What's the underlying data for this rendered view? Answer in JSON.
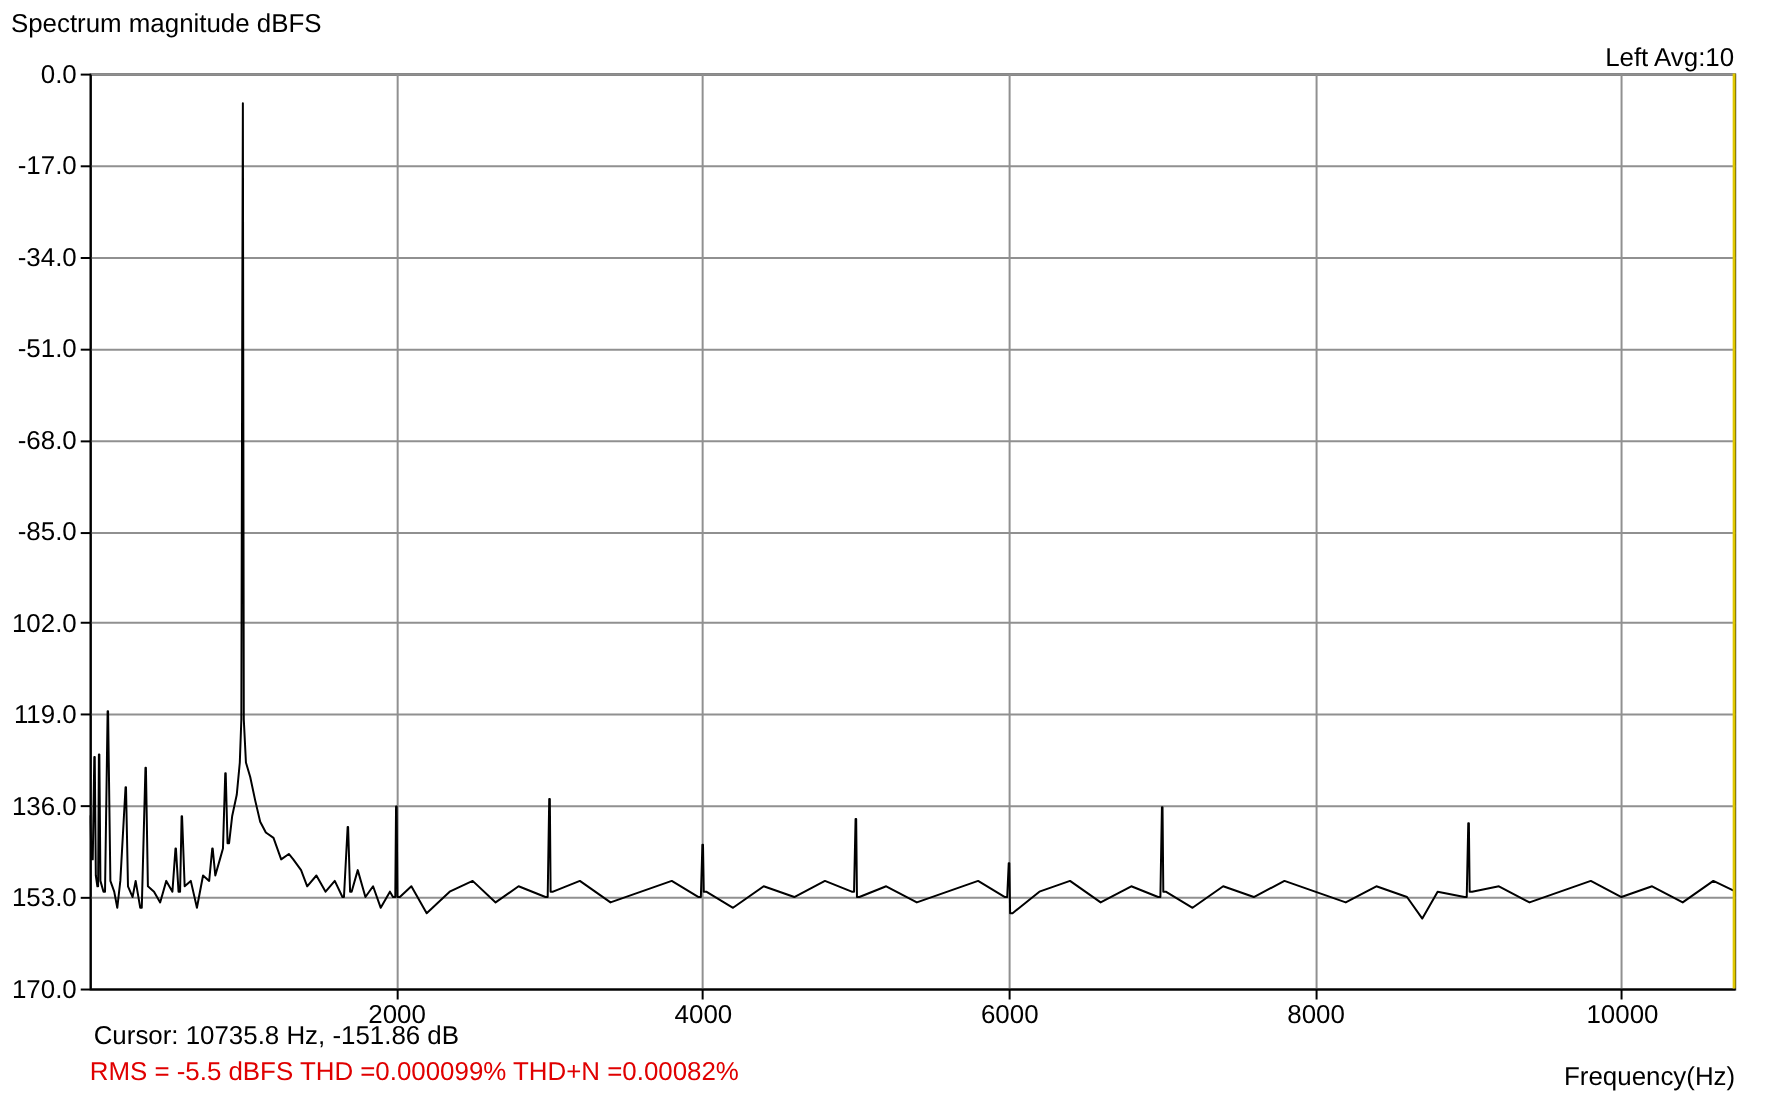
{
  "chart_data": {
    "type": "line",
    "title": "Spectrum magnitude dBFS",
    "xlabel": "Frequency(Hz)",
    "annotations": [
      "Left  Avg:10",
      "Cursor: 10735.8 Hz, -151.86 dB",
      "RMS =   -5.5 dBFS   THD =0.000099%   THD+N =0.00082%"
    ],
    "xlim": [
      0,
      10736
    ],
    "xticks": [
      2000,
      4000,
      6000,
      8000,
      10000
    ],
    "ylim": [
      -170,
      0
    ],
    "yticks": [
      {
        "value": 0,
        "label": "0.0"
      },
      {
        "value": -17,
        "label": "-17.0"
      },
      {
        "value": -34,
        "label": "-34.0"
      },
      {
        "value": -51,
        "label": "-51.0"
      },
      {
        "value": -68,
        "label": "-68.0"
      },
      {
        "value": -85,
        "label": "-85.0"
      },
      {
        "value": -102,
        "label": "102.0"
      },
      {
        "value": -119,
        "label": "119.0"
      },
      {
        "value": -136,
        "label": "136.0"
      },
      {
        "value": -153,
        "label": "153.0"
      },
      {
        "value": -170,
        "label": "170.0"
      }
    ],
    "grid": true,
    "ref_lines": [
      {
        "axis": "x",
        "value": 10735.8,
        "color": "#e0c800"
      }
    ],
    "series": [
      {
        "color": "#000000",
        "x": [
          0,
          15,
          20,
          30,
          33,
          40,
          50,
          55,
          60,
          63,
          70,
          90,
          100,
          117,
          120,
          135,
          160,
          180,
          200,
          234,
          237,
          250,
          280,
          300,
          330,
          340,
          364,
          367,
          380,
          420,
          460,
          500,
          540,
          560,
          563,
          580,
          590,
          600,
          603,
          620,
          660,
          700,
          740,
          780,
          800,
          803,
          820,
          850,
          870,
          885,
          888,
          900,
          910,
          930,
          960,
          980,
          990,
          996,
          1000,
          1006,
          1020,
          1048,
          1080,
          1113,
          1150,
          1200,
          1250,
          1300,
          1329,
          1380,
          1420,
          1480,
          1540,
          1600,
          1650,
          1660,
          1684,
          1687,
          1700,
          1710,
          1750,
          1800,
          1850,
          1900,
          1960,
          1980,
          1995,
          2000,
          2004,
          2009,
          2025,
          2100,
          2200,
          2350,
          2500,
          2650,
          2800,
          2975,
          2990,
          3000,
          3004,
          3009,
          3025,
          3200,
          3400,
          3600,
          3800,
          3975,
          3990,
          4000,
          4004,
          4009,
          4025,
          4200,
          4400,
          4600,
          4800,
          4975,
          4990,
          5000,
          5004,
          5009,
          5025,
          5200,
          5400,
          5600,
          5800,
          5975,
          5990,
          6000,
          6004,
          6009,
          6025,
          6200,
          6400,
          6600,
          6800,
          6975,
          6990,
          7000,
          7004,
          7009,
          7025,
          7200,
          7400,
          7600,
          7800,
          8000,
          8200,
          8400,
          8600,
          8700,
          8800,
          8975,
          8990,
          9000,
          9004,
          9009,
          9025,
          9200,
          9400,
          9600,
          9800,
          10000,
          10200,
          10400,
          10600,
          10736
        ],
        "values": [
          -138,
          -146,
          -146,
          -127,
          -127,
          -149,
          -151,
          -151,
          -126.5,
          -126.5,
          -150,
          -152,
          -152,
          -118.5,
          -118.5,
          -150,
          -152,
          -155,
          -150,
          -132.6,
          -132.6,
          -151,
          -153,
          -150,
          -155,
          -155,
          -129,
          -129,
          -151,
          -152,
          -154,
          -150,
          -152,
          -144,
          -144,
          -152,
          -152,
          -138,
          -138,
          -151,
          -150,
          -155,
          -149,
          -150,
          -144,
          -144,
          -149,
          -146,
          -144,
          -130,
          -130,
          -143,
          -143,
          -138,
          -134,
          -128,
          -120,
          -46,
          -5.5,
          -120,
          -128,
          -130.7,
          -135,
          -139,
          -141,
          -142,
          -146,
          -145,
          -146,
          -148,
          -151,
          -149,
          -152,
          -150,
          -153,
          -153,
          -140,
          -140,
          -152,
          -152,
          -148,
          -153,
          -151,
          -155,
          -152,
          -153,
          -153,
          -136.2,
          -136.2,
          -153,
          -153,
          -151,
          -156,
          -152,
          -150,
          -154,
          -151,
          -153,
          -153,
          -134.8,
          -134.8,
          -152,
          -152,
          -150,
          -154,
          -152,
          -150,
          -153,
          -153,
          -143.3,
          -143.3,
          -152,
          -152,
          -155,
          -151,
          -153,
          -150,
          -152,
          -152,
          -138.5,
          -138.5,
          -153,
          -153,
          -151,
          -154,
          -152,
          -150,
          -153,
          -153,
          -146.7,
          -146.7,
          -156,
          -156,
          -152,
          -150,
          -154,
          -151,
          -153,
          -153,
          -136.3,
          -136.3,
          -152,
          -152,
          -155,
          -151,
          -153,
          -150,
          -152,
          -154,
          -151,
          -153,
          -157,
          -152,
          -153,
          -153,
          -139.3,
          -139.3,
          -152,
          -152,
          -151,
          -154,
          -152,
          -150,
          -153,
          -151,
          -154,
          -150,
          -151.86
        ]
      }
    ]
  }
}
